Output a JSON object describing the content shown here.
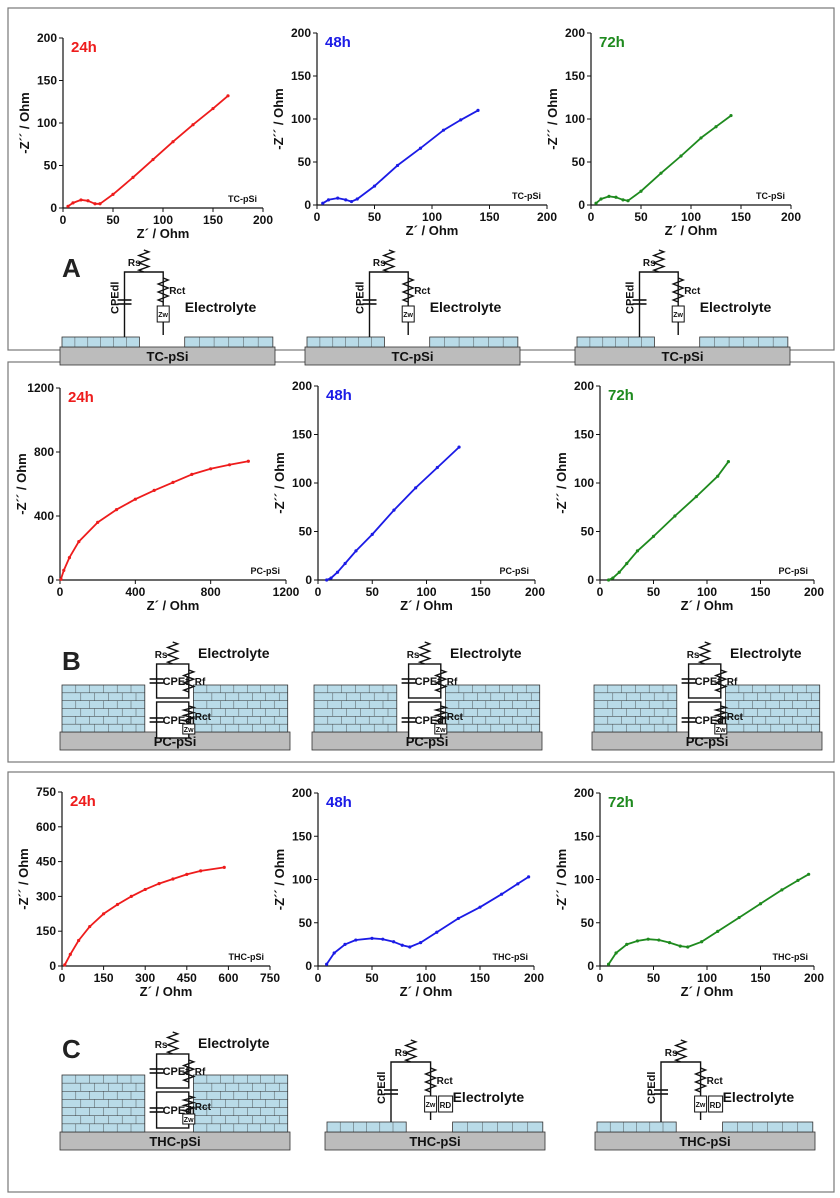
{
  "figure": {
    "panel_labels": [
      "A",
      "B",
      "C"
    ],
    "electrolyte_label": "Electrolyte",
    "axis_labels": {
      "x": "Z´ / Ohm",
      "y": "-Z´´ / Ohm"
    }
  },
  "colors": {
    "h24": "#ee1c1c",
    "h48": "#1b1be6",
    "h72": "#1e8a1e",
    "silicon_fill": "#bcbcbc",
    "pore_fill": "#b9dbe8"
  },
  "circuit_labels": {
    "rs": "Rs",
    "rct": "Rct",
    "rf": "Rf",
    "rd": "RD",
    "cpe_dl": "CPEdl",
    "cpe_f": "CPEf",
    "zw": "Zw"
  },
  "chart_data": [
    {
      "panel": "A",
      "type": "line",
      "time_label": "24h",
      "sample_label": "TC-pSi",
      "x_ticks": [
        "0",
        "50",
        "100",
        "150",
        "200"
      ],
      "y_ticks": [
        "0",
        "50",
        "100",
        "150",
        "200"
      ],
      "xlim": [
        0,
        200
      ],
      "ylim": [
        0,
        200
      ],
      "xlabel": "Z´ / Ohm",
      "ylabel": "-Z´´ / Ohm",
      "series": [
        {
          "points": [
            [
              5,
              2
            ],
            [
              10,
              6
            ],
            [
              18,
              9.5
            ],
            [
              25,
              8.5
            ],
            [
              32,
              5
            ],
            [
              37,
              5
            ],
            [
              50,
              16
            ],
            [
              70,
              36
            ],
            [
              90,
              57
            ],
            [
              110,
              78
            ],
            [
              130,
              98
            ],
            [
              150,
              117
            ],
            [
              165,
              132
            ]
          ]
        }
      ]
    },
    {
      "panel": "A",
      "type": "line",
      "time_label": "48h",
      "sample_label": "TC-pSi",
      "x_ticks": [
        "0",
        "50",
        "100",
        "150",
        "200"
      ],
      "y_ticks": [
        "0",
        "50",
        "100",
        "150",
        "200"
      ],
      "xlim": [
        0,
        200
      ],
      "ylim": [
        0,
        200
      ],
      "xlabel": "Z´ / Ohm",
      "ylabel": "-Z´´ / Ohm",
      "series": [
        {
          "points": [
            [
              5,
              2
            ],
            [
              10,
              6
            ],
            [
              18,
              8
            ],
            [
              25,
              6
            ],
            [
              30,
              4
            ],
            [
              35,
              7
            ],
            [
              50,
              22
            ],
            [
              70,
              46
            ],
            [
              90,
              66
            ],
            [
              110,
              87
            ],
            [
              125,
              99
            ],
            [
              140,
              110
            ]
          ]
        }
      ]
    },
    {
      "panel": "A",
      "type": "line",
      "time_label": "72h",
      "sample_label": "TC-pSi",
      "x_ticks": [
        "0",
        "50",
        "100",
        "150",
        "200"
      ],
      "y_ticks": [
        "0",
        "50",
        "100",
        "150",
        "200"
      ],
      "xlim": [
        0,
        200
      ],
      "ylim": [
        0,
        200
      ],
      "xlabel": "Z´ / Ohm",
      "ylabel": "-Z´´ / Ohm",
      "series": [
        {
          "points": [
            [
              5,
              2
            ],
            [
              10,
              7
            ],
            [
              18,
              10
            ],
            [
              25,
              9
            ],
            [
              32,
              6
            ],
            [
              37,
              5
            ],
            [
              50,
              16
            ],
            [
              70,
              37
            ],
            [
              90,
              57
            ],
            [
              110,
              78
            ],
            [
              125,
              91
            ],
            [
              140,
              104
            ]
          ]
        }
      ]
    },
    {
      "panel": "B",
      "type": "line",
      "time_label": "24h",
      "sample_label": "PC-pSi",
      "x_ticks": [
        "0",
        "400",
        "800",
        "1200"
      ],
      "y_ticks": [
        "0",
        "400",
        "800",
        "1200"
      ],
      "xlim": [
        0,
        1200
      ],
      "ylim": [
        0,
        1200
      ],
      "xlabel": "Z´ / Ohm",
      "ylabel": "-Z´´ / Ohm",
      "series": [
        {
          "points": [
            [
              5,
              5
            ],
            [
              20,
              60
            ],
            [
              50,
              140
            ],
            [
              100,
              240
            ],
            [
              200,
              360
            ],
            [
              300,
              440
            ],
            [
              400,
              505
            ],
            [
              500,
              560
            ],
            [
              600,
              610
            ],
            [
              700,
              660
            ],
            [
              800,
              695
            ],
            [
              900,
              720
            ],
            [
              1000,
              742
            ]
          ]
        }
      ]
    },
    {
      "panel": "B",
      "type": "line",
      "time_label": "48h",
      "sample_label": "PC-pSi",
      "x_ticks": [
        "0",
        "50",
        "100",
        "150",
        "200"
      ],
      "y_ticks": [
        "0",
        "50",
        "100",
        "150",
        "200"
      ],
      "xlim": [
        0,
        200
      ],
      "ylim": [
        0,
        200
      ],
      "xlabel": "Z´ / Ohm",
      "ylabel": "-Z´´ / Ohm",
      "series": [
        {
          "points": [
            [
              8,
              0
            ],
            [
              12,
              2
            ],
            [
              18,
              8
            ],
            [
              25,
              17
            ],
            [
              35,
              30
            ],
            [
              50,
              47
            ],
            [
              70,
              72
            ],
            [
              90,
              95
            ],
            [
              110,
              116
            ],
            [
              130,
              137
            ]
          ]
        }
      ]
    },
    {
      "panel": "B",
      "type": "line",
      "time_label": "72h",
      "sample_label": "PC-pSi",
      "x_ticks": [
        "0",
        "50",
        "100",
        "150",
        "200"
      ],
      "y_ticks": [
        "0",
        "50",
        "100",
        "150",
        "200"
      ],
      "xlim": [
        0,
        200
      ],
      "ylim": [
        0,
        200
      ],
      "xlabel": "Z´ / Ohm",
      "ylabel": "-Z´´ / Ohm",
      "series": [
        {
          "points": [
            [
              8,
              0
            ],
            [
              12,
              2
            ],
            [
              18,
              8
            ],
            [
              25,
              17
            ],
            [
              35,
              30
            ],
            [
              50,
              45
            ],
            [
              70,
              66
            ],
            [
              90,
              86
            ],
            [
              110,
              107
            ],
            [
              120,
              122
            ]
          ]
        }
      ]
    },
    {
      "panel": "C",
      "type": "line",
      "time_label": "24h",
      "sample_label": "THC-pSi",
      "x_ticks": [
        "0",
        "150",
        "300",
        "450",
        "600",
        "750"
      ],
      "y_ticks": [
        "0",
        "150",
        "300",
        "450",
        "600",
        "750"
      ],
      "xlim": [
        0,
        750
      ],
      "ylim": [
        0,
        750
      ],
      "xlabel": "Z´ / Ohm",
      "ylabel": "-Z´´ / Ohm",
      "series": [
        {
          "points": [
            [
              10,
              5
            ],
            [
              30,
              50
            ],
            [
              60,
              110
            ],
            [
              100,
              170
            ],
            [
              150,
              225
            ],
            [
              200,
              265
            ],
            [
              250,
              300
            ],
            [
              300,
              330
            ],
            [
              350,
              355
            ],
            [
              400,
              375
            ],
            [
              450,
              395
            ],
            [
              500,
              410
            ],
            [
              585,
              425
            ]
          ]
        }
      ]
    },
    {
      "panel": "C",
      "type": "line",
      "time_label": "48h",
      "sample_label": "THC-pSi",
      "x_ticks": [
        "0",
        "50",
        "100",
        "150",
        "200"
      ],
      "y_ticks": [
        "0",
        "50",
        "100",
        "150",
        "200"
      ],
      "xlim": [
        0,
        200
      ],
      "ylim": [
        0,
        200
      ],
      "xlabel": "Z´ / Ohm",
      "ylabel": "-Z´´ / Ohm",
      "series": [
        {
          "points": [
            [
              8,
              2
            ],
            [
              15,
              15
            ],
            [
              25,
              25
            ],
            [
              35,
              30
            ],
            [
              50,
              32
            ],
            [
              60,
              31
            ],
            [
              70,
              28
            ],
            [
              78,
              24
            ],
            [
              85,
              22
            ],
            [
              95,
              27
            ],
            [
              110,
              39
            ],
            [
              130,
              55
            ],
            [
              150,
              68
            ],
            [
              170,
              83
            ],
            [
              185,
              95
            ],
            [
              195,
              103
            ]
          ]
        }
      ]
    },
    {
      "panel": "C",
      "type": "line",
      "time_label": "72h",
      "sample_label": "THC-pSi",
      "x_ticks": [
        "0",
        "50",
        "100",
        "150",
        "200"
      ],
      "y_ticks": [
        "0",
        "50",
        "100",
        "150",
        "200"
      ],
      "xlim": [
        0,
        200
      ],
      "ylim": [
        0,
        200
      ],
      "xlabel": "Z´ / Ohm",
      "ylabel": "-Z´´ / Ohm",
      "series": [
        {
          "points": [
            [
              8,
              2
            ],
            [
              15,
              15
            ],
            [
              25,
              25
            ],
            [
              35,
              29
            ],
            [
              45,
              31
            ],
            [
              55,
              30
            ],
            [
              65,
              27
            ],
            [
              75,
              23
            ],
            [
              82,
              22
            ],
            [
              95,
              28
            ],
            [
              110,
              40
            ],
            [
              130,
              56
            ],
            [
              150,
              72
            ],
            [
              170,
              88
            ],
            [
              185,
              99
            ],
            [
              195,
              106
            ]
          ]
        }
      ]
    }
  ],
  "diagrams": [
    {
      "panel": "A",
      "style": "tc",
      "substrate_label": "TC-pSi"
    },
    {
      "panel": "A",
      "style": "tc",
      "substrate_label": "TC-pSi"
    },
    {
      "panel": "A",
      "style": "tc",
      "substrate_label": "TC-pSi"
    },
    {
      "panel": "B",
      "style": "pc",
      "substrate_label": "PC-pSi"
    },
    {
      "panel": "B",
      "style": "pc",
      "substrate_label": "PC-pSi"
    },
    {
      "panel": "B",
      "style": "pc",
      "substrate_label": "PC-pSi"
    },
    {
      "panel": "C",
      "style": "pc",
      "substrate_label": "THC-pSi"
    },
    {
      "panel": "C",
      "style": "thc",
      "substrate_label": "THC-pSi"
    },
    {
      "panel": "C",
      "style": "thc",
      "substrate_label": "THC-pSi"
    }
  ]
}
